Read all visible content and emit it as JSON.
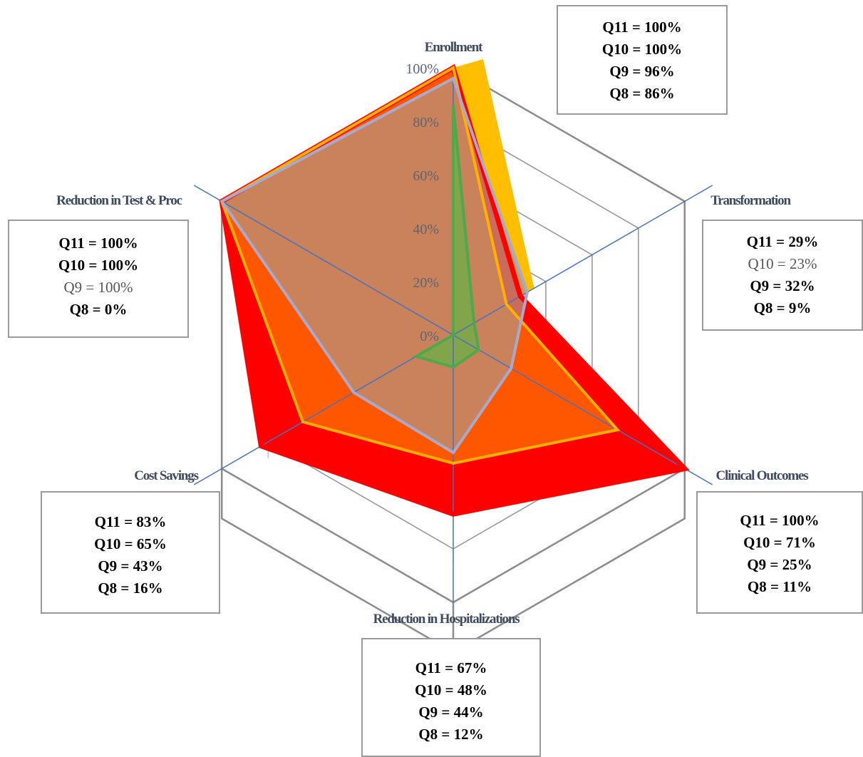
{
  "chart_data": {
    "type": "radar",
    "axes": [
      "Enrollment",
      "Transformation",
      "Clinical  Outcomes",
      "Reduction in Hospitalizations",
      "Cost Savings",
      "Reduction in Test & Proc"
    ],
    "ticks": [
      "0%",
      "20%",
      "40%",
      "60%",
      "80%",
      "100%"
    ],
    "range": [
      0,
      100
    ],
    "series": [
      {
        "name": "Q11",
        "values": [
          100,
          29,
          100,
          67,
          83,
          100
        ],
        "color": "#ff0000"
      },
      {
        "name": "Q10",
        "values": [
          100,
          23,
          71,
          48,
          65,
          100
        ],
        "color": "#ffc000"
      },
      {
        "name": "Q9",
        "values": [
          96,
          32,
          25,
          44,
          43,
          100
        ],
        "color": "#a6aad0"
      },
      {
        "name": "Q8",
        "values": [
          86,
          9,
          11,
          12,
          16,
          0
        ],
        "color": "#4fa84a"
      }
    ]
  },
  "callouts": [
    {
      "axis": "Enrollment",
      "lines": [
        "Q11 = 100%",
        "Q10 = 100%",
        "Q9 = 96%",
        "Q8 = 86%"
      ],
      "weights": [
        "b",
        "b",
        "b",
        "b"
      ]
    },
    {
      "axis": "Transformation",
      "lines": [
        "Q11 = 29%",
        "Q10 = 23%",
        "Q9 = 32%",
        "Q8 = 9%"
      ],
      "weights": [
        "b",
        "n",
        "b",
        "b"
      ]
    },
    {
      "axis": "Clinical  Outcomes",
      "lines": [
        "Q11 = 100%",
        "Q10 = 71%",
        "Q9 = 25%",
        "Q8 = 11%"
      ],
      "weights": [
        "b",
        "b",
        "b",
        "b"
      ]
    },
    {
      "axis": "Reduction in Hospitalizations",
      "lines": [
        "Q11 = 67%",
        "Q10 = 48%",
        "Q9 = 44%",
        "Q8 = 12%"
      ],
      "weights": [
        "b",
        "b",
        "b",
        "b"
      ]
    },
    {
      "axis": "Cost Savings",
      "lines": [
        "Q11 = 83%",
        "Q10 = 65%",
        "Q9 = 43%",
        "Q8 = 16%"
      ],
      "weights": [
        "b",
        "b",
        "b",
        "b"
      ]
    },
    {
      "axis": "Reduction in Test & Proc",
      "lines": [
        "Q11 = 100%",
        "Q10 = 100%",
        "Q9 = 100%",
        "Q8 = 0%"
      ],
      "weights": [
        "b",
        "b",
        "n",
        "b"
      ]
    }
  ]
}
